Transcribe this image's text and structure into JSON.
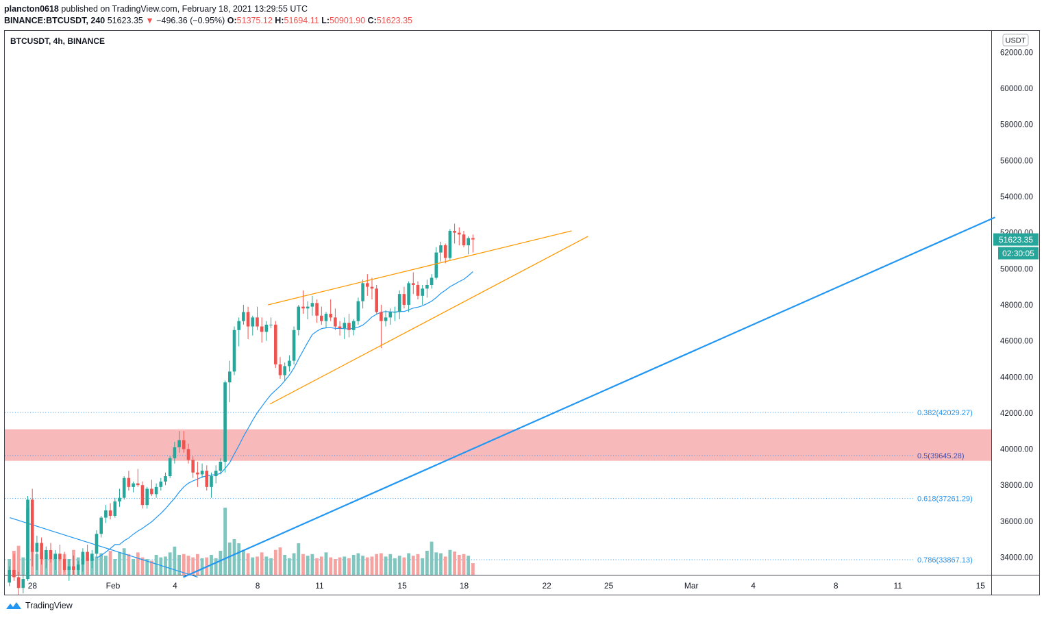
{
  "header": {
    "publisher": "plancton0618",
    "published_text": "published on TradingView.com, February 18, 2021 13:29:55 UTC",
    "symbol_full": "BINANCE:BTCUSDT, 240",
    "last_price": "51623.35",
    "change_arrow": "▼",
    "change": "−496.36 (−0.95%)",
    "o_label": "O:",
    "o_value": "51375.12",
    "h_label": "H:",
    "h_value": "51694.11",
    "l_label": "L:",
    "l_value": "50901.90",
    "c_label": "C:",
    "c_value": "51623.35"
  },
  "chart_title": "BTCUSDT, 4h, BINANCE",
  "currency_badge": "USDT",
  "price_tag": "51623.35",
  "countdown_tag": "02:30:05",
  "footer_brand": "TradingView",
  "colors": {
    "up": "#26a69a",
    "down": "#ef5350",
    "up_vol": "#80c6bf",
    "down_vol": "#f4a3a1",
    "ma": "#2196f3",
    "wedge": "#ff9800",
    "trend": "#2196f3",
    "zone": "#f8b5b6",
    "fib": "#2196f3"
  },
  "chart_data": {
    "type": "candlestick",
    "title": "BTCUSDT, 4h, BINANCE",
    "y_axis": {
      "ticks": [
        34000,
        36000,
        38000,
        40000,
        42000,
        44000,
        46000,
        48000,
        50000,
        52000,
        54000,
        56000,
        58000,
        60000,
        62000
      ],
      "tick_labels": [
        "34000.00",
        "36000.00",
        "38000.00",
        "40000.00",
        "42000.00",
        "44000.00",
        "46000.00",
        "48000.00",
        "50000.00",
        "52000.00",
        "54000.00",
        "56000.00",
        "58000.00",
        "60000.00",
        "62000.00"
      ]
    },
    "x_axis": {
      "ticks": [
        {
          "day": -3.9,
          "label": "28"
        },
        {
          "day": 0,
          "label": "Feb"
        },
        {
          "day": 3,
          "label": "4"
        },
        {
          "day": 7,
          "label": "8"
        },
        {
          "day": 10,
          "label": "11"
        },
        {
          "day": 14,
          "label": "15"
        },
        {
          "day": 17,
          "label": "18"
        },
        {
          "day": 21,
          "label": "22"
        },
        {
          "day": 24,
          "label": "25"
        },
        {
          "day": 28,
          "label": "Mar"
        },
        {
          "day": 31,
          "label": "4"
        },
        {
          "day": 35,
          "label": "8"
        },
        {
          "day": 38,
          "label": "11"
        },
        {
          "day": 42,
          "label": "15"
        }
      ]
    },
    "candles": [
      [
        32600,
        33500,
        32400,
        33300,
        9500
      ],
      [
        33300,
        34200,
        32700,
        32900,
        14500
      ],
      [
        32900,
        33200,
        31900,
        32300,
        17500
      ],
      [
        32300,
        33000,
        32000,
        32800,
        10500
      ],
      [
        32800,
        37400,
        32700,
        37200,
        40500
      ],
      [
        37200,
        37800,
        33500,
        34300,
        17500
      ],
      [
        34300,
        35200,
        33300,
        34800,
        12500
      ],
      [
        34800,
        35100,
        33600,
        33900,
        13500
      ],
      [
        33900,
        34600,
        33400,
        34400,
        12000
      ],
      [
        34400,
        34800,
        33700,
        33900,
        9500
      ],
      [
        33900,
        34400,
        33300,
        34200,
        11000
      ],
      [
        34200,
        34700,
        33800,
        33900,
        10000
      ],
      [
        33900,
        34300,
        33200,
        33300,
        12500
      ],
      [
        33300,
        33900,
        32700,
        33500,
        9500
      ],
      [
        33500,
        34100,
        33000,
        33300,
        15000
      ],
      [
        33300,
        33800,
        33000,
        33600,
        10500
      ],
      [
        33600,
        34500,
        33200,
        34300,
        12000
      ],
      [
        34300,
        34700,
        33800,
        33800,
        10000
      ],
      [
        33800,
        34400,
        33400,
        34200,
        10500
      ],
      [
        34200,
        35500,
        34000,
        35300,
        11000
      ],
      [
        35300,
        36300,
        35100,
        36200,
        13000
      ],
      [
        36200,
        36900,
        35900,
        36600,
        11500
      ],
      [
        36600,
        37000,
        36100,
        36300,
        14500
      ],
      [
        36300,
        37300,
        36200,
        37100,
        9500
      ],
      [
        37100,
        37800,
        36800,
        37300,
        13500
      ],
      [
        37300,
        38500,
        37200,
        38400,
        16000
      ],
      [
        38400,
        38800,
        37700,
        37900,
        12500
      ],
      [
        37900,
        38200,
        37600,
        38100,
        9500
      ],
      [
        38100,
        38900,
        37900,
        38000,
        13500
      ],
      [
        38000,
        38200,
        36700,
        36900,
        10500
      ],
      [
        36900,
        37900,
        36700,
        37800,
        9500
      ],
      [
        37800,
        38300,
        37400,
        37500,
        8500
      ],
      [
        37500,
        38100,
        37300,
        37900,
        12000
      ],
      [
        37900,
        38400,
        37700,
        38200,
        10500
      ],
      [
        38200,
        38700,
        38000,
        38500,
        11000
      ],
      [
        38500,
        39600,
        38400,
        39500,
        13500
      ],
      [
        39500,
        40400,
        39200,
        40100,
        17000
      ],
      [
        40100,
        41000,
        39800,
        40500,
        12000
      ],
      [
        40500,
        41000,
        39800,
        40000,
        12500
      ],
      [
        40000,
        40300,
        39200,
        39400,
        11500
      ],
      [
        39400,
        39600,
        38400,
        38700,
        10500
      ],
      [
        38700,
        39300,
        37900,
        38600,
        12500
      ],
      [
        38600,
        39200,
        38400,
        38800,
        10000
      ],
      [
        38800,
        39100,
        37700,
        37900,
        10500
      ],
      [
        37900,
        38700,
        37300,
        38500,
        12000
      ],
      [
        38500,
        39100,
        38100,
        38800,
        10000
      ],
      [
        38800,
        39500,
        38600,
        39300,
        14500
      ],
      [
        39300,
        43800,
        38700,
        43700,
        40500
      ],
      [
        43700,
        44900,
        42600,
        44300,
        19500
      ],
      [
        44300,
        46800,
        44100,
        46600,
        21500
      ],
      [
        46600,
        47300,
        45700,
        47100,
        19000
      ],
      [
        47100,
        48000,
        46900,
        47600,
        15000
      ],
      [
        47600,
        47900,
        46100,
        46800,
        13000
      ],
      [
        46800,
        47400,
        46300,
        47300,
        10500
      ],
      [
        47300,
        47900,
        46600,
        46800,
        11000
      ],
      [
        46800,
        47300,
        45900,
        46500,
        13500
      ],
      [
        46500,
        47100,
        46000,
        46900,
        11000
      ],
      [
        46900,
        47300,
        46700,
        46900,
        10000
      ],
      [
        46900,
        47100,
        44500,
        44700,
        15000
      ],
      [
        44700,
        45100,
        43900,
        44100,
        16500
      ],
      [
        44100,
        44800,
        43800,
        44600,
        12000
      ],
      [
        44600,
        45200,
        44300,
        44900,
        10000
      ],
      [
        44900,
        46800,
        44700,
        46600,
        13000
      ],
      [
        46600,
        48000,
        46300,
        47900,
        19000
      ],
      [
        47900,
        48800,
        47500,
        47800,
        12500
      ],
      [
        47800,
        48200,
        47200,
        47900,
        11500
      ],
      [
        47900,
        48500,
        47400,
        48100,
        12500
      ],
      [
        48100,
        48300,
        47000,
        47400,
        10000
      ],
      [
        47400,
        47900,
        46900,
        47100,
        11000
      ],
      [
        47100,
        47600,
        46700,
        47500,
        13500
      ],
      [
        47500,
        48300,
        47100,
        47300,
        10500
      ],
      [
        47300,
        47800,
        46600,
        46800,
        9500
      ],
      [
        46800,
        47100,
        46300,
        46700,
        10500
      ],
      [
        46700,
        47300,
        46100,
        47000,
        11000
      ],
      [
        47000,
        47500,
        46200,
        46600,
        10000
      ],
      [
        46600,
        47200,
        46300,
        47100,
        12000
      ],
      [
        47100,
        48400,
        46900,
        48200,
        13000
      ],
      [
        48200,
        49400,
        47800,
        49200,
        11500
      ],
      [
        49200,
        49700,
        48500,
        49000,
        10500
      ],
      [
        49000,
        49500,
        48300,
        48900,
        11000
      ],
      [
        48900,
        49100,
        47500,
        47600,
        12500
      ],
      [
        47600,
        48000,
        45600,
        47100,
        13000
      ],
      [
        47100,
        47700,
        46800,
        47300,
        11000
      ],
      [
        47300,
        47800,
        46900,
        47600,
        12500
      ],
      [
        47600,
        47900,
        47100,
        47600,
        10000
      ],
      [
        47600,
        48800,
        47200,
        48600,
        11500
      ],
      [
        48600,
        49000,
        47800,
        48000,
        10500
      ],
      [
        48000,
        49300,
        47600,
        49200,
        13000
      ],
      [
        49200,
        49800,
        48600,
        49100,
        11500
      ],
      [
        49100,
        49300,
        48300,
        48500,
        12500
      ],
      [
        48500,
        49100,
        48000,
        48900,
        10000
      ],
      [
        48900,
        49400,
        48400,
        49100,
        14500
      ],
      [
        49100,
        49700,
        48900,
        49500,
        20000
      ],
      [
        49500,
        51200,
        49400,
        50900,
        13500
      ],
      [
        50900,
        51500,
        50400,
        51300,
        13000
      ],
      [
        51300,
        51400,
        50300,
        50600,
        11000
      ],
      [
        50600,
        52200,
        50500,
        52100,
        15000
      ],
      [
        52100,
        52500,
        51400,
        52000,
        14000
      ],
      [
        52000,
        52300,
        51300,
        51900,
        12000
      ],
      [
        51900,
        52100,
        51200,
        51300,
        12500
      ],
      [
        51300,
        51800,
        50800,
        51700,
        11500
      ],
      [
        51700,
        51900,
        50900,
        51623,
        7000
      ]
    ],
    "volume_axis_max": 45000,
    "fib_levels": [
      {
        "label": "0.382(42029.27)",
        "price": 42029.27
      },
      {
        "label": "0.5(39645.28)",
        "price": 39645.28
      },
      {
        "label": "0.618(37261.29)",
        "price": 37261.29
      },
      {
        "label": "0.786(33867.13)",
        "price": 33867.13
      }
    ],
    "zone": {
      "top": 41100,
      "bottom": 39350
    },
    "wedge_upper": [
      [
        7.5,
        48000
      ],
      [
        22.2,
        52100
      ]
    ],
    "wedge_lower": [
      [
        7.6,
        42500
      ],
      [
        23.0,
        51800
      ]
    ],
    "trendline": [
      [
        3.4,
        32900
      ],
      [
        42.7,
        52850
      ]
    ],
    "downtrend": [
      [
        -5.0,
        36200
      ],
      [
        4.1,
        32900
      ]
    ]
  }
}
